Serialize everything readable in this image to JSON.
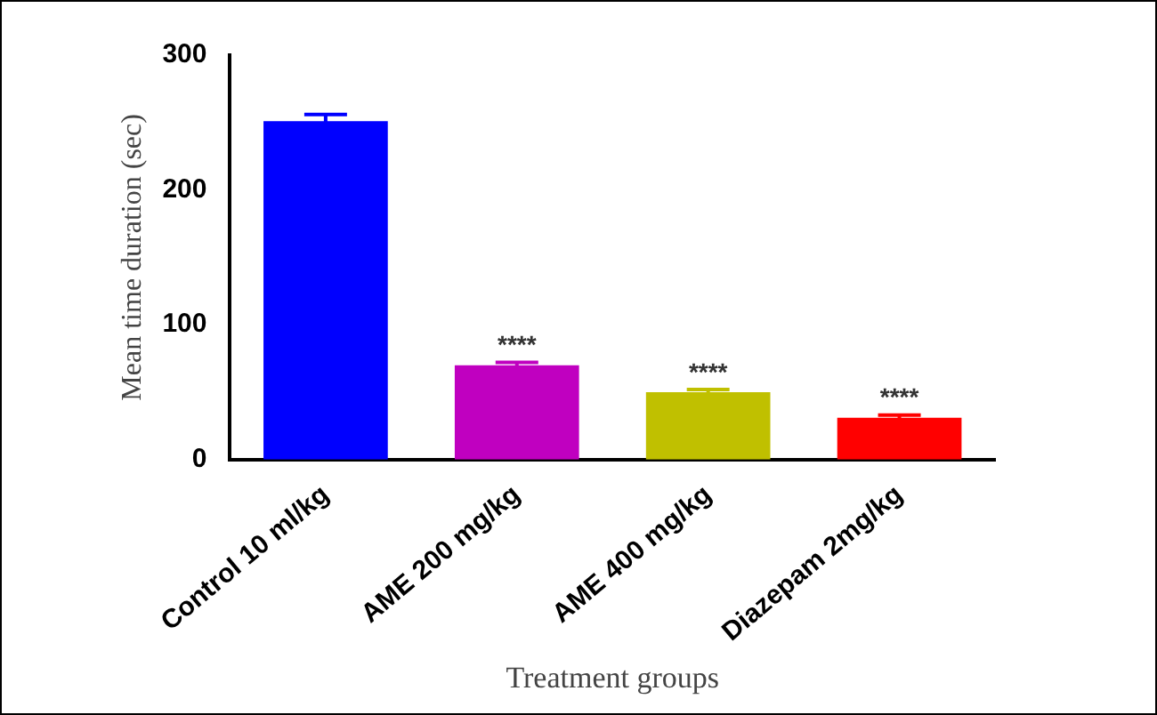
{
  "chart_data": {
    "type": "bar",
    "xlabel": "Treatment groups",
    "ylabel": "Mean time duration (sec)",
    "categories": [
      "Control 10 ml/kg",
      "AME 200 mg/kg",
      "AME 400 mg/kg",
      "Diazepam 2mg/kg"
    ],
    "values": [
      251,
      70,
      50,
      31
    ],
    "errors": [
      5,
      2,
      2,
      2
    ],
    "colors": [
      "#0000ff",
      "#c000c0",
      "#c0c000",
      "#ff0000"
    ],
    "ylim": [
      0,
      300
    ],
    "yticks": [
      0,
      100,
      200,
      300
    ],
    "grid": false,
    "legend": false,
    "annotations": [
      {
        "text": "****",
        "x": "AME 200 mg/kg",
        "y": 72
      },
      {
        "text": "****",
        "x": "AME 400 mg/kg",
        "y": 52
      },
      {
        "text": "****",
        "x": "Diazepam 2mg/kg",
        "y": 33
      }
    ]
  }
}
